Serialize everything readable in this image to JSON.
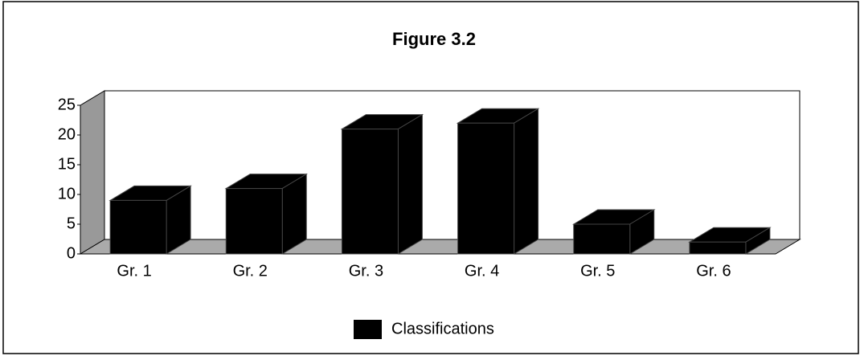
{
  "chart_data": {
    "type": "bar3d",
    "title": "Figure 3.2",
    "categories": [
      "Gr. 1",
      "Gr. 2",
      "Gr. 3",
      "Gr. 4",
      "Gr. 5",
      "Gr. 6"
    ],
    "series": [
      {
        "name": "Classifications",
        "color": "#000000",
        "values": [
          9,
          11,
          21,
          22,
          5,
          2
        ]
      }
    ],
    "ylim": [
      0,
      25
    ],
    "yticks": [
      0,
      5,
      10,
      15,
      20,
      25
    ],
    "legend": "bottom"
  }
}
